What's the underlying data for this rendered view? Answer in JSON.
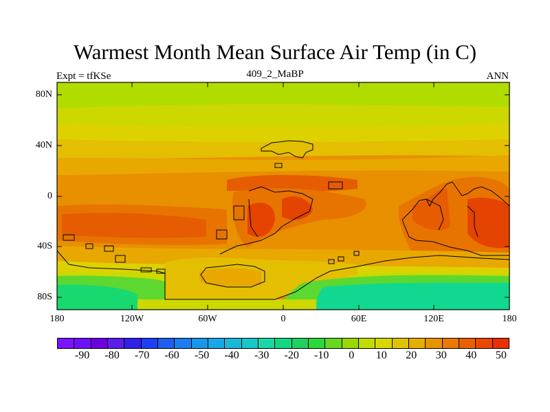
{
  "title": "Warmest Month Mean Surface Air Temp (in C)",
  "subtitle_left": "Expt = tfKSe",
  "subtitle_center": "409_2_MaBP",
  "subtitle_right": "ANN",
  "axes": {
    "lat_labels": [
      "80N",
      "40N",
      "0",
      "40S",
      "80S"
    ],
    "lon_labels": [
      "180",
      "120W",
      "60W",
      "0",
      "60E",
      "120E",
      "180"
    ]
  },
  "colorbar": {
    "labels": [
      "-90",
      "-80",
      "-70",
      "-60",
      "-50",
      "-40",
      "-30",
      "-20",
      "-10",
      "0",
      "10",
      "20",
      "30",
      "40",
      "50"
    ],
    "colors": [
      "#7a14ff",
      "#6e10f5",
      "#6a00e0",
      "#5a1ee8",
      "#3020e8",
      "#1e40f5",
      "#1c60f0",
      "#1a7ef0",
      "#1a96e8",
      "#18a8e8",
      "#1ab8d8",
      "#16c8c8",
      "#18d8a8",
      "#10d880",
      "#22d060",
      "#2ad83c",
      "#66d820",
      "#9ad800",
      "#c0dc00",
      "#d8d800",
      "#e0c400",
      "#e6ae00",
      "#e89400",
      "#ea7a00",
      "#ea6000",
      "#ea4800",
      "#e83000"
    ]
  },
  "map_colors": {
    "lime": "#b0dc00",
    "yellow_green": "#ccd800",
    "yellow": "#ddd200",
    "gold": "#e4be00",
    "amber": "#e8a800",
    "orange": "#e89000",
    "dark_orange": "#e87400",
    "red_orange": "#e65c00",
    "red": "#e44400",
    "green": "#5cd830",
    "teal_green": "#18d870",
    "teal": "#10d890"
  }
}
